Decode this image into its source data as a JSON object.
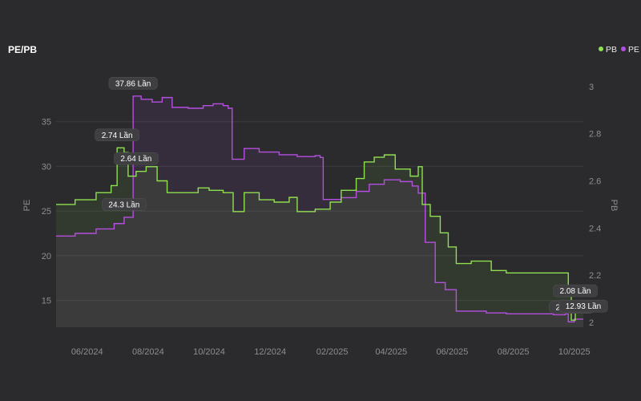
{
  "chart_data": {
    "type": "line",
    "title": "PE/PB",
    "ylabel_left": "PE",
    "ylabel_right": "PB",
    "y_left_range": [
      12,
      40
    ],
    "y_right_range": [
      1.98,
      3.04
    ],
    "y_left_ticks": [
      "15",
      "20",
      "25",
      "30",
      "35"
    ],
    "y_right_ticks": [
      "2",
      "2.2",
      "2.4",
      "2.6",
      "2.8",
      "3"
    ],
    "y_left_tick_values": [
      15,
      20,
      25,
      30,
      35
    ],
    "y_right_tick_values": [
      2,
      2.2,
      2.4,
      2.6,
      2.8,
      3
    ],
    "x_range": [
      "2024-05-01",
      "2025-10-10"
    ],
    "x_ticks": [
      {
        "label": "06/2024",
        "date": "2024-06-01"
      },
      {
        "label": "08/2024",
        "date": "2024-08-01"
      },
      {
        "label": "10/2024",
        "date": "2024-10-01"
      },
      {
        "label": "12/2024",
        "date": "2024-12-01"
      },
      {
        "label": "02/2025",
        "date": "2025-02-01"
      },
      {
        "label": "04/2025",
        "date": "2025-04-01"
      },
      {
        "label": "06/2025",
        "date": "2025-06-01"
      },
      {
        "label": "08/2025",
        "date": "2025-08-01"
      },
      {
        "label": "10/2025",
        "date": "2025-10-01"
      }
    ],
    "grid": true,
    "legend_position": "top-right",
    "legend": [
      {
        "name": "PB",
        "color": "#8fe04f"
      },
      {
        "name": "PE",
        "color": "#b44fe0"
      }
    ],
    "series": [
      {
        "name": "PE",
        "axis": "left",
        "color": "#b44fe0",
        "points": [
          [
            "2024-05-01",
            22.2
          ],
          [
            "2024-05-20",
            22.5
          ],
          [
            "2024-06-10",
            23.0
          ],
          [
            "2024-06-28",
            23.6
          ],
          [
            "2024-07-08",
            24.3
          ],
          [
            "2024-07-15",
            24.3
          ],
          [
            "2024-07-17",
            37.86
          ],
          [
            "2024-07-25",
            37.5
          ],
          [
            "2024-08-05",
            37.2
          ],
          [
            "2024-08-15",
            37.7
          ],
          [
            "2024-08-25",
            36.6
          ],
          [
            "2024-09-10",
            36.5
          ],
          [
            "2024-09-25",
            36.8
          ],
          [
            "2024-10-05",
            37.0
          ],
          [
            "2024-10-15",
            36.8
          ],
          [
            "2024-10-20",
            36.5
          ],
          [
            "2024-10-24",
            30.8
          ],
          [
            "2024-11-05",
            32.0
          ],
          [
            "2024-11-20",
            31.6
          ],
          [
            "2024-12-10",
            31.3
          ],
          [
            "2024-12-28",
            31.1
          ],
          [
            "2025-01-15",
            31.2
          ],
          [
            "2025-01-20",
            31.0
          ],
          [
            "2025-01-23",
            26.3
          ],
          [
            "2025-02-10",
            26.5
          ],
          [
            "2025-02-25",
            27.2
          ],
          [
            "2025-03-10",
            28.0
          ],
          [
            "2025-03-25",
            28.5
          ],
          [
            "2025-04-10",
            28.3
          ],
          [
            "2025-04-22",
            27.8
          ],
          [
            "2025-04-28",
            27.0
          ],
          [
            "2025-05-05",
            21.5
          ],
          [
            "2025-05-15",
            17.0
          ],
          [
            "2025-05-25",
            16.2
          ],
          [
            "2025-06-05",
            13.8
          ],
          [
            "2025-06-20",
            13.8
          ],
          [
            "2025-07-05",
            13.6
          ],
          [
            "2025-07-25",
            13.5
          ],
          [
            "2025-08-15",
            13.5
          ],
          [
            "2025-09-10",
            13.4
          ],
          [
            "2025-09-22",
            13.5
          ],
          [
            "2025-09-25",
            12.6
          ],
          [
            "2025-10-01",
            12.9
          ],
          [
            "2025-10-10",
            12.9
          ]
        ]
      },
      {
        "name": "PB",
        "axis": "right",
        "color": "#8fe04f",
        "points": [
          [
            "2024-05-01",
            2.5
          ],
          [
            "2024-05-20",
            2.52
          ],
          [
            "2024-06-10",
            2.55
          ],
          [
            "2024-06-25",
            2.58
          ],
          [
            "2024-07-01",
            2.74
          ],
          [
            "2024-07-08",
            2.72
          ],
          [
            "2024-07-12",
            2.62
          ],
          [
            "2024-07-20",
            2.64
          ],
          [
            "2024-07-30",
            2.66
          ],
          [
            "2024-08-10",
            2.6
          ],
          [
            "2024-08-20",
            2.55
          ],
          [
            "2024-09-05",
            2.55
          ],
          [
            "2024-09-20",
            2.57
          ],
          [
            "2024-10-01",
            2.56
          ],
          [
            "2024-10-15",
            2.55
          ],
          [
            "2024-10-25",
            2.47
          ],
          [
            "2024-11-05",
            2.55
          ],
          [
            "2024-11-20",
            2.52
          ],
          [
            "2024-12-05",
            2.51
          ],
          [
            "2024-12-20",
            2.53
          ],
          [
            "2024-12-28",
            2.47
          ],
          [
            "2025-01-15",
            2.48
          ],
          [
            "2025-01-30",
            2.51
          ],
          [
            "2025-02-10",
            2.56
          ],
          [
            "2025-02-25",
            2.61
          ],
          [
            "2025-03-05",
            2.68
          ],
          [
            "2025-03-15",
            2.7
          ],
          [
            "2025-03-25",
            2.71
          ],
          [
            "2025-04-05",
            2.65
          ],
          [
            "2025-04-20",
            2.62
          ],
          [
            "2025-04-28",
            2.66
          ],
          [
            "2025-05-02",
            2.5
          ],
          [
            "2025-05-10",
            2.45
          ],
          [
            "2025-05-20",
            2.38
          ],
          [
            "2025-05-28",
            2.32
          ],
          [
            "2025-06-05",
            2.25
          ],
          [
            "2025-06-20",
            2.26
          ],
          [
            "2025-07-10",
            2.22
          ],
          [
            "2025-07-25",
            2.21
          ],
          [
            "2025-08-20",
            2.21
          ],
          [
            "2025-09-15",
            2.21
          ],
          [
            "2025-09-25",
            2.14
          ],
          [
            "2025-09-28",
            2.01
          ],
          [
            "2025-10-02",
            2.08
          ],
          [
            "2025-10-10",
            2.06
          ]
        ]
      }
    ],
    "annotations": [
      {
        "text": "37.86 Lần",
        "series": "PE",
        "date": "2024-07-17",
        "value": 37.86,
        "side": "above"
      },
      {
        "text": "24.3 Lần",
        "series": "PE",
        "date": "2024-07-08",
        "value": 24.3,
        "side": "above"
      },
      {
        "text": "2.74 Lần",
        "series": "PB",
        "date": "2024-07-01",
        "value": 2.74,
        "side": "above"
      },
      {
        "text": "2.64 Lần",
        "series": "PB",
        "date": "2024-07-20",
        "value": 2.64,
        "side": "above"
      },
      {
        "text": "2.08 Lần",
        "series": "PB",
        "date": "2025-10-02",
        "value": 2.08,
        "side": "above"
      },
      {
        "text": "2.01 Lần",
        "series": "PB",
        "date": "2025-09-28",
        "value": 2.01,
        "side": "above"
      },
      {
        "text": "12.93 Lần",
        "series": "PE",
        "date": "2025-10-10",
        "value": 12.93,
        "side": "above"
      }
    ]
  }
}
